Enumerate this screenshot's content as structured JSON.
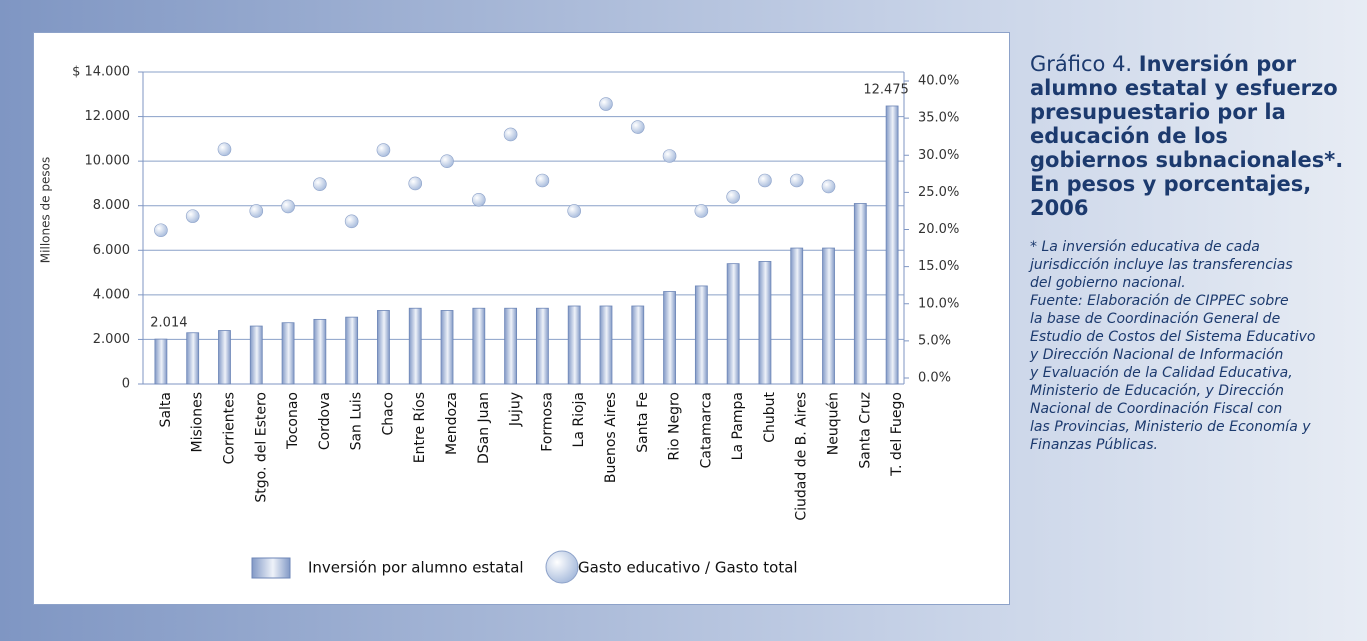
{
  "chart_data": {
    "type": "bar",
    "title_label": "Gráfico 4.",
    "title": "Inversión por alumno estatal y esfuerzo presupuestario por la educación de los gobiernos subnacionales*. En pesos y porcentajes, 2006",
    "notes": [
      "* La inversión educativa de cada",
      "jurisdicción incluye las transferencias",
      "del gobierno nacional.",
      "Fuente: Elaboración de CIPPEC sobre",
      "la base de Coordinación General de",
      "Estudio de Costos del Sistema Educativo",
      "y  Dirección Nacional de Información",
      "y Evaluación de la Calidad Educativa,",
      "Ministerio de Educación, y Dirección",
      "Nacional de Coordinación Fiscal con",
      "las Provincias, Ministerio de Economía y",
      "Finanzas Públicas."
    ],
    "y_label": "Millones de pesos",
    "categories": [
      "Salta",
      "Misiones",
      "Corrientes",
      "Stgo. del Estero",
      "Toconao",
      "Cordova",
      "San Luis",
      "Chaco",
      "Entre Ríos",
      "Mendoza",
      "DSan Juan",
      "Jujuy",
      "Formosa",
      "La Rioja",
      "Buenos Aires",
      "Santa Fe",
      "Rio Negro",
      "Catamarca",
      "La Pampa",
      "Chubut",
      "Ciudad de B. Aires",
      "Neuquén",
      "Santa Cruz",
      "T. del Fuego"
    ],
    "series": [
      {
        "name": "Inversión por alumno estatal",
        "color": "#8299c6",
        "values": [
          2014,
          2300,
          2400,
          2600,
          2750,
          2900,
          3000,
          3300,
          3400,
          3300,
          3400,
          3400,
          3400,
          3500,
          3500,
          3500,
          4150,
          4400,
          5400,
          5500,
          6100,
          6100,
          8100,
          12475
        ],
        "value_labels": [
          "2.014",
          null,
          null,
          null,
          null,
          null,
          null,
          null,
          null,
          null,
          null,
          null,
          null,
          null,
          null,
          null,
          null,
          null,
          null,
          null,
          null,
          null,
          null,
          "12.475"
        ]
      },
      {
        "name": "Gasto educativo / Gasto total",
        "color": "#a7bbdc",
        "axis": "y2",
        "values": [
          19.9,
          21.8,
          30.8,
          22.5,
          23.1,
          26.1,
          21.1,
          30.7,
          26.2,
          29.2,
          24.0,
          32.8,
          26.6,
          22.5,
          36.9,
          33.8,
          29.9,
          22.5,
          24.4,
          26.6,
          26.6,
          25.8,
          null,
          null
        ]
      }
    ],
    "ylim": [
      0,
      14000
    ],
    "yticks": [
      0,
      {
        "value": 2000,
        "label": "2.000"
      },
      {
        "value": 4000,
        "label": "4.000"
      },
      {
        "value": 6000,
        "label": "6.000"
      },
      {
        "value": 8000,
        "label": "8.000"
      },
      {
        "value": 10000,
        "label": "10.000"
      },
      {
        "value": 12000,
        "label": "12.000"
      },
      {
        "value": 14000,
        "label": "$ 14.000"
      }
    ],
    "y2lim": [
      0,
      40
    ],
    "y2ticks": [
      {
        "value": 0,
        "label": "0.0%"
      },
      {
        "value": 5,
        "label": "5.0%"
      },
      {
        "value": 10,
        "label": "10.0%"
      },
      {
        "value": 15,
        "label": "15.0%"
      },
      {
        "value": 20,
        "label": "20.0%"
      },
      {
        "value": 25,
        "label": "25.0%"
      },
      {
        "value": 30,
        "label": "30.0%"
      },
      {
        "value": 35,
        "label": "35.0%"
      },
      {
        "value": 40,
        "label": "40.0%"
      }
    ],
    "grid": true
  }
}
